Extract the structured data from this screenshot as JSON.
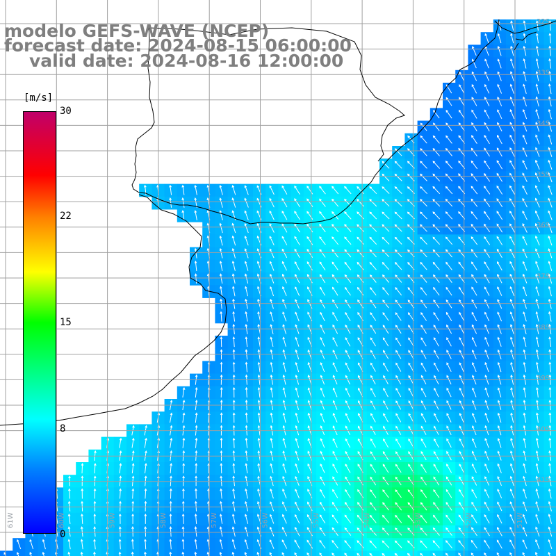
{
  "title": {
    "line1": "modelo GEFS-WAVE (NCEP)",
    "line2": "forecast date: 2024-08-15 06:00:00",
    "line3": "valid date: 2024-08-16 12:00:00"
  },
  "colorbar": {
    "unit": "[m/s]",
    "ticks": [
      "30",
      "22",
      "15",
      "8",
      "0"
    ],
    "tick_values": [
      30,
      22,
      15,
      8,
      0
    ],
    "range": [
      0,
      30
    ],
    "colors": [
      "#0000ff",
      "#0080ff",
      "#00ffff",
      "#00ff00",
      "#ffff00",
      "#ff8000",
      "#ff0000",
      "#c0006a"
    ]
  },
  "map": {
    "lon_labels": [
      "61W",
      "60W",
      "59W",
      "58W",
      "57W",
      "56W",
      "55W",
      "54W",
      "53W",
      "52W",
      "51W"
    ],
    "lat_labels": [
      "32S",
      "33S",
      "34S",
      "35S",
      "36S",
      "37S",
      "38S",
      "39S",
      "40S",
      "41S"
    ],
    "land_color": "#ffffff",
    "grid_color": "#a0a0a0",
    "coast_color": "#000000"
  }
}
